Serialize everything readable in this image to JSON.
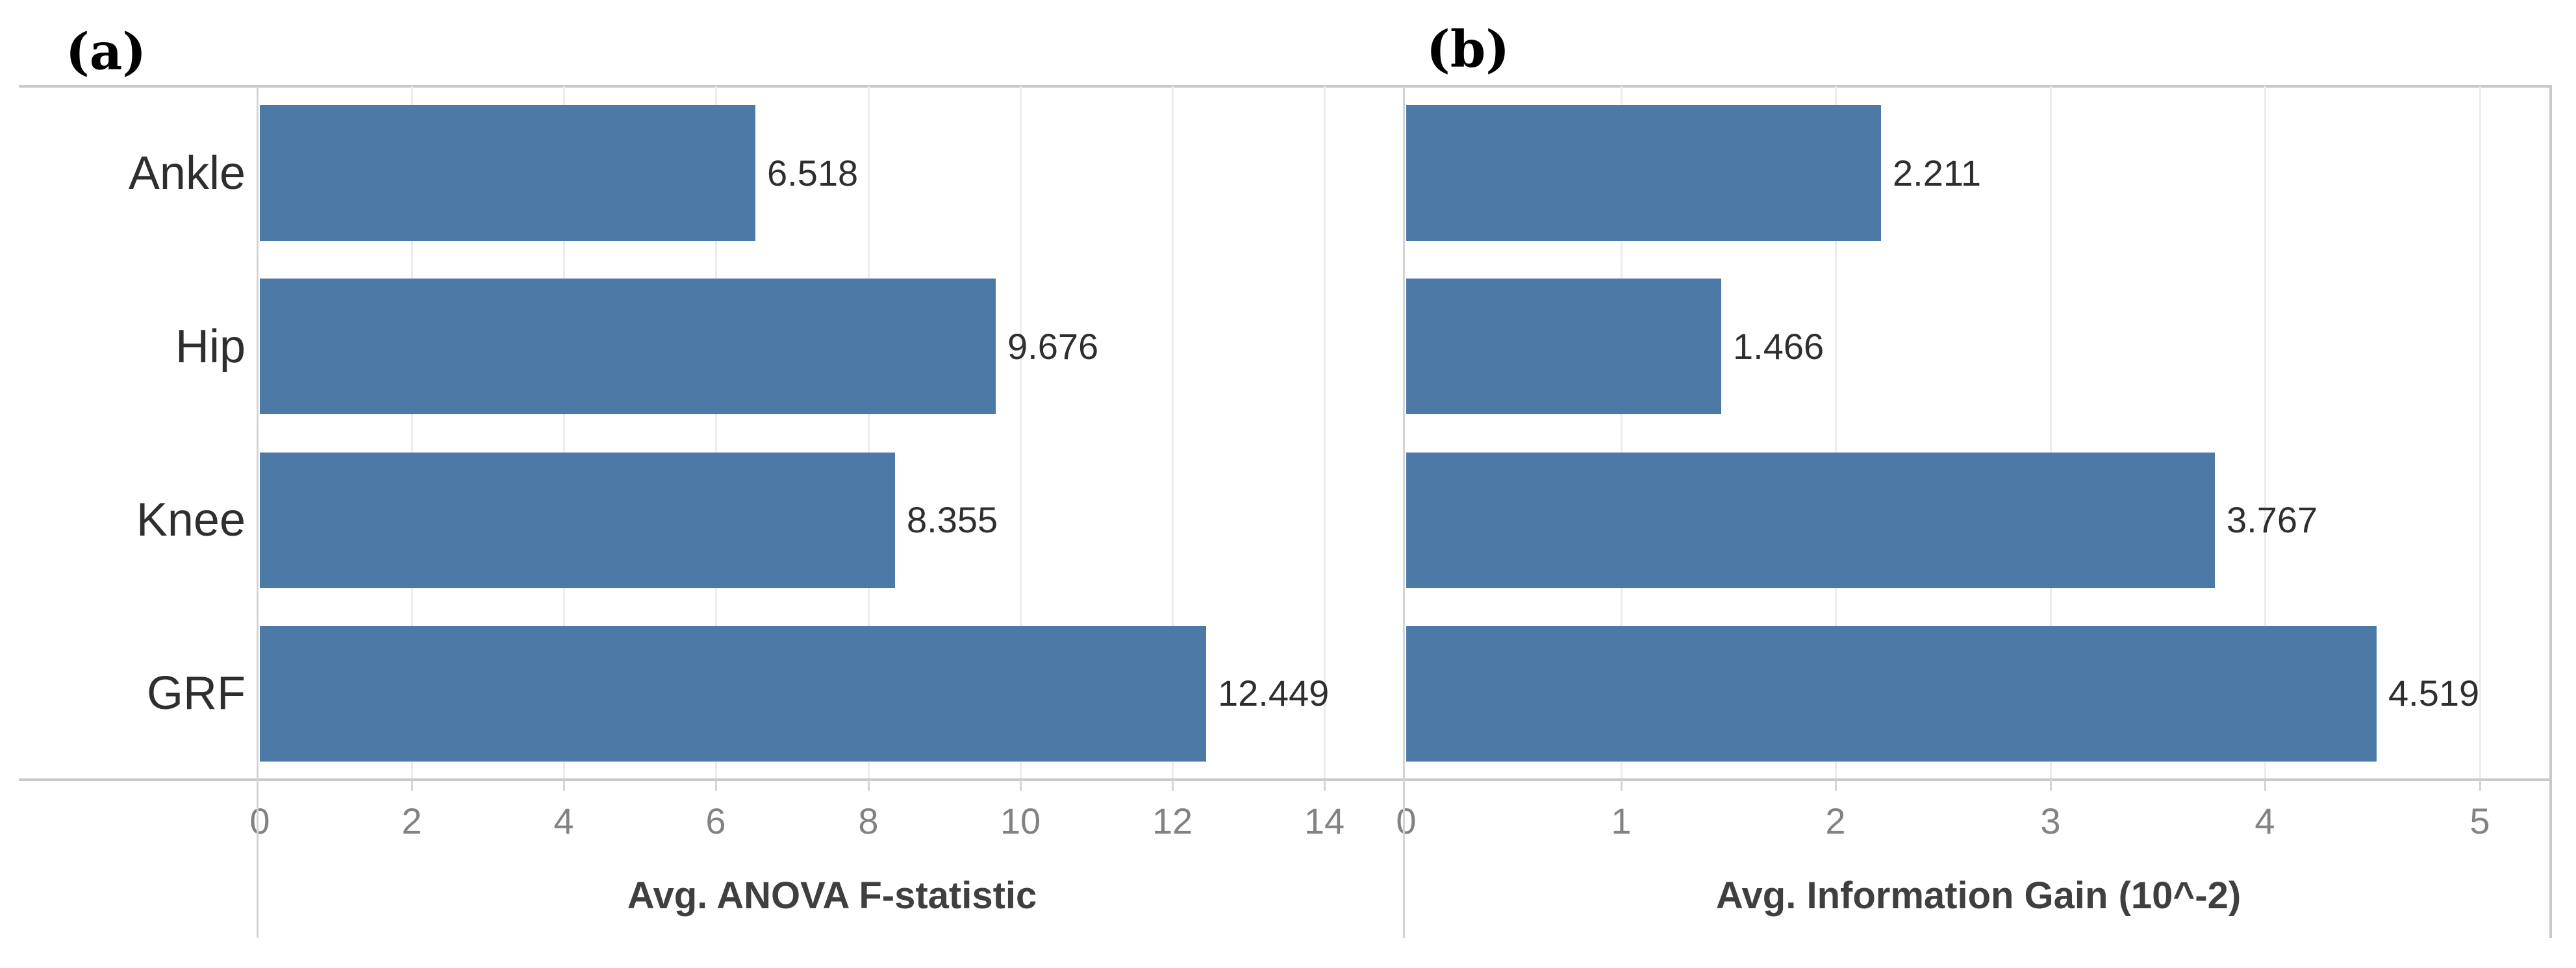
{
  "figure": {
    "background": "#ffffff"
  },
  "chart_data": [
    {
      "type": "bar",
      "orientation": "horizontal",
      "panel_label": "(a)",
      "categories": [
        "Ankle",
        "Hip",
        "Knee",
        "GRF"
      ],
      "values": [
        6.518,
        9.676,
        8.355,
        12.449
      ],
      "value_labels": [
        "6.518",
        "9.676",
        "8.355",
        "12.449"
      ],
      "xlabel": "Avg. ANOVA F-statistic",
      "xticks": [
        0,
        2,
        4,
        6,
        8,
        10,
        12,
        14
      ],
      "xtick_labels": [
        "0",
        "2",
        "4",
        "6",
        "8",
        "10",
        "12",
        "14"
      ],
      "xlim": [
        0,
        15.05
      ],
      "grid": "vertical-only",
      "legend": "none",
      "show_category_labels": true
    },
    {
      "type": "bar",
      "orientation": "horizontal",
      "panel_label": "(b)",
      "categories": [
        "Ankle",
        "Hip",
        "Knee",
        "GRF"
      ],
      "values": [
        2.211,
        1.466,
        3.767,
        4.519
      ],
      "value_labels": [
        "2.211",
        "1.466",
        "3.767",
        "4.519"
      ],
      "xlabel": "Avg. Information Gain (10^-2)",
      "xticks": [
        0,
        1,
        2,
        3,
        4,
        5
      ],
      "xtick_labels": [
        "0",
        "1",
        "2",
        "3",
        "4",
        "5"
      ],
      "xlim": [
        0,
        5.33
      ],
      "grid": "vertical-only",
      "legend": "none",
      "show_category_labels": false
    }
  ],
  "colors": {
    "bar": "#4d79a7",
    "border": "#c9c9c9",
    "axis_line": "#d4d4d4",
    "gridline": "#ececec",
    "tick_label": "#828282",
    "category_label": "#2e2e2e",
    "value_label": "#2e2e2e",
    "axis_title": "#3f3f3f",
    "panel_label": "#000000"
  }
}
